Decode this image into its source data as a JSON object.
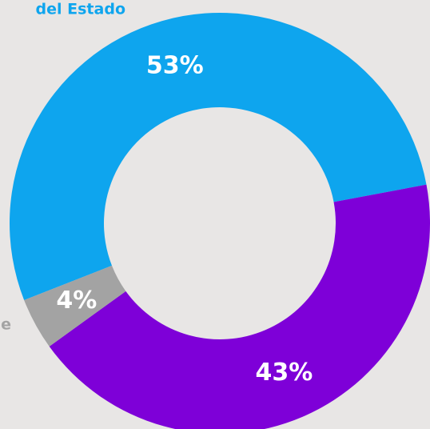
{
  "chart_data": {
    "type": "donut",
    "categories": [
      "del Estado",
      null,
      "e"
    ],
    "values": [
      53,
      43,
      4
    ],
    "value_labels": [
      "53%",
      "43%",
      "4%"
    ],
    "colors": [
      "#0ea5ee",
      "#7e00d8",
      "#a3a3a3"
    ]
  }
}
